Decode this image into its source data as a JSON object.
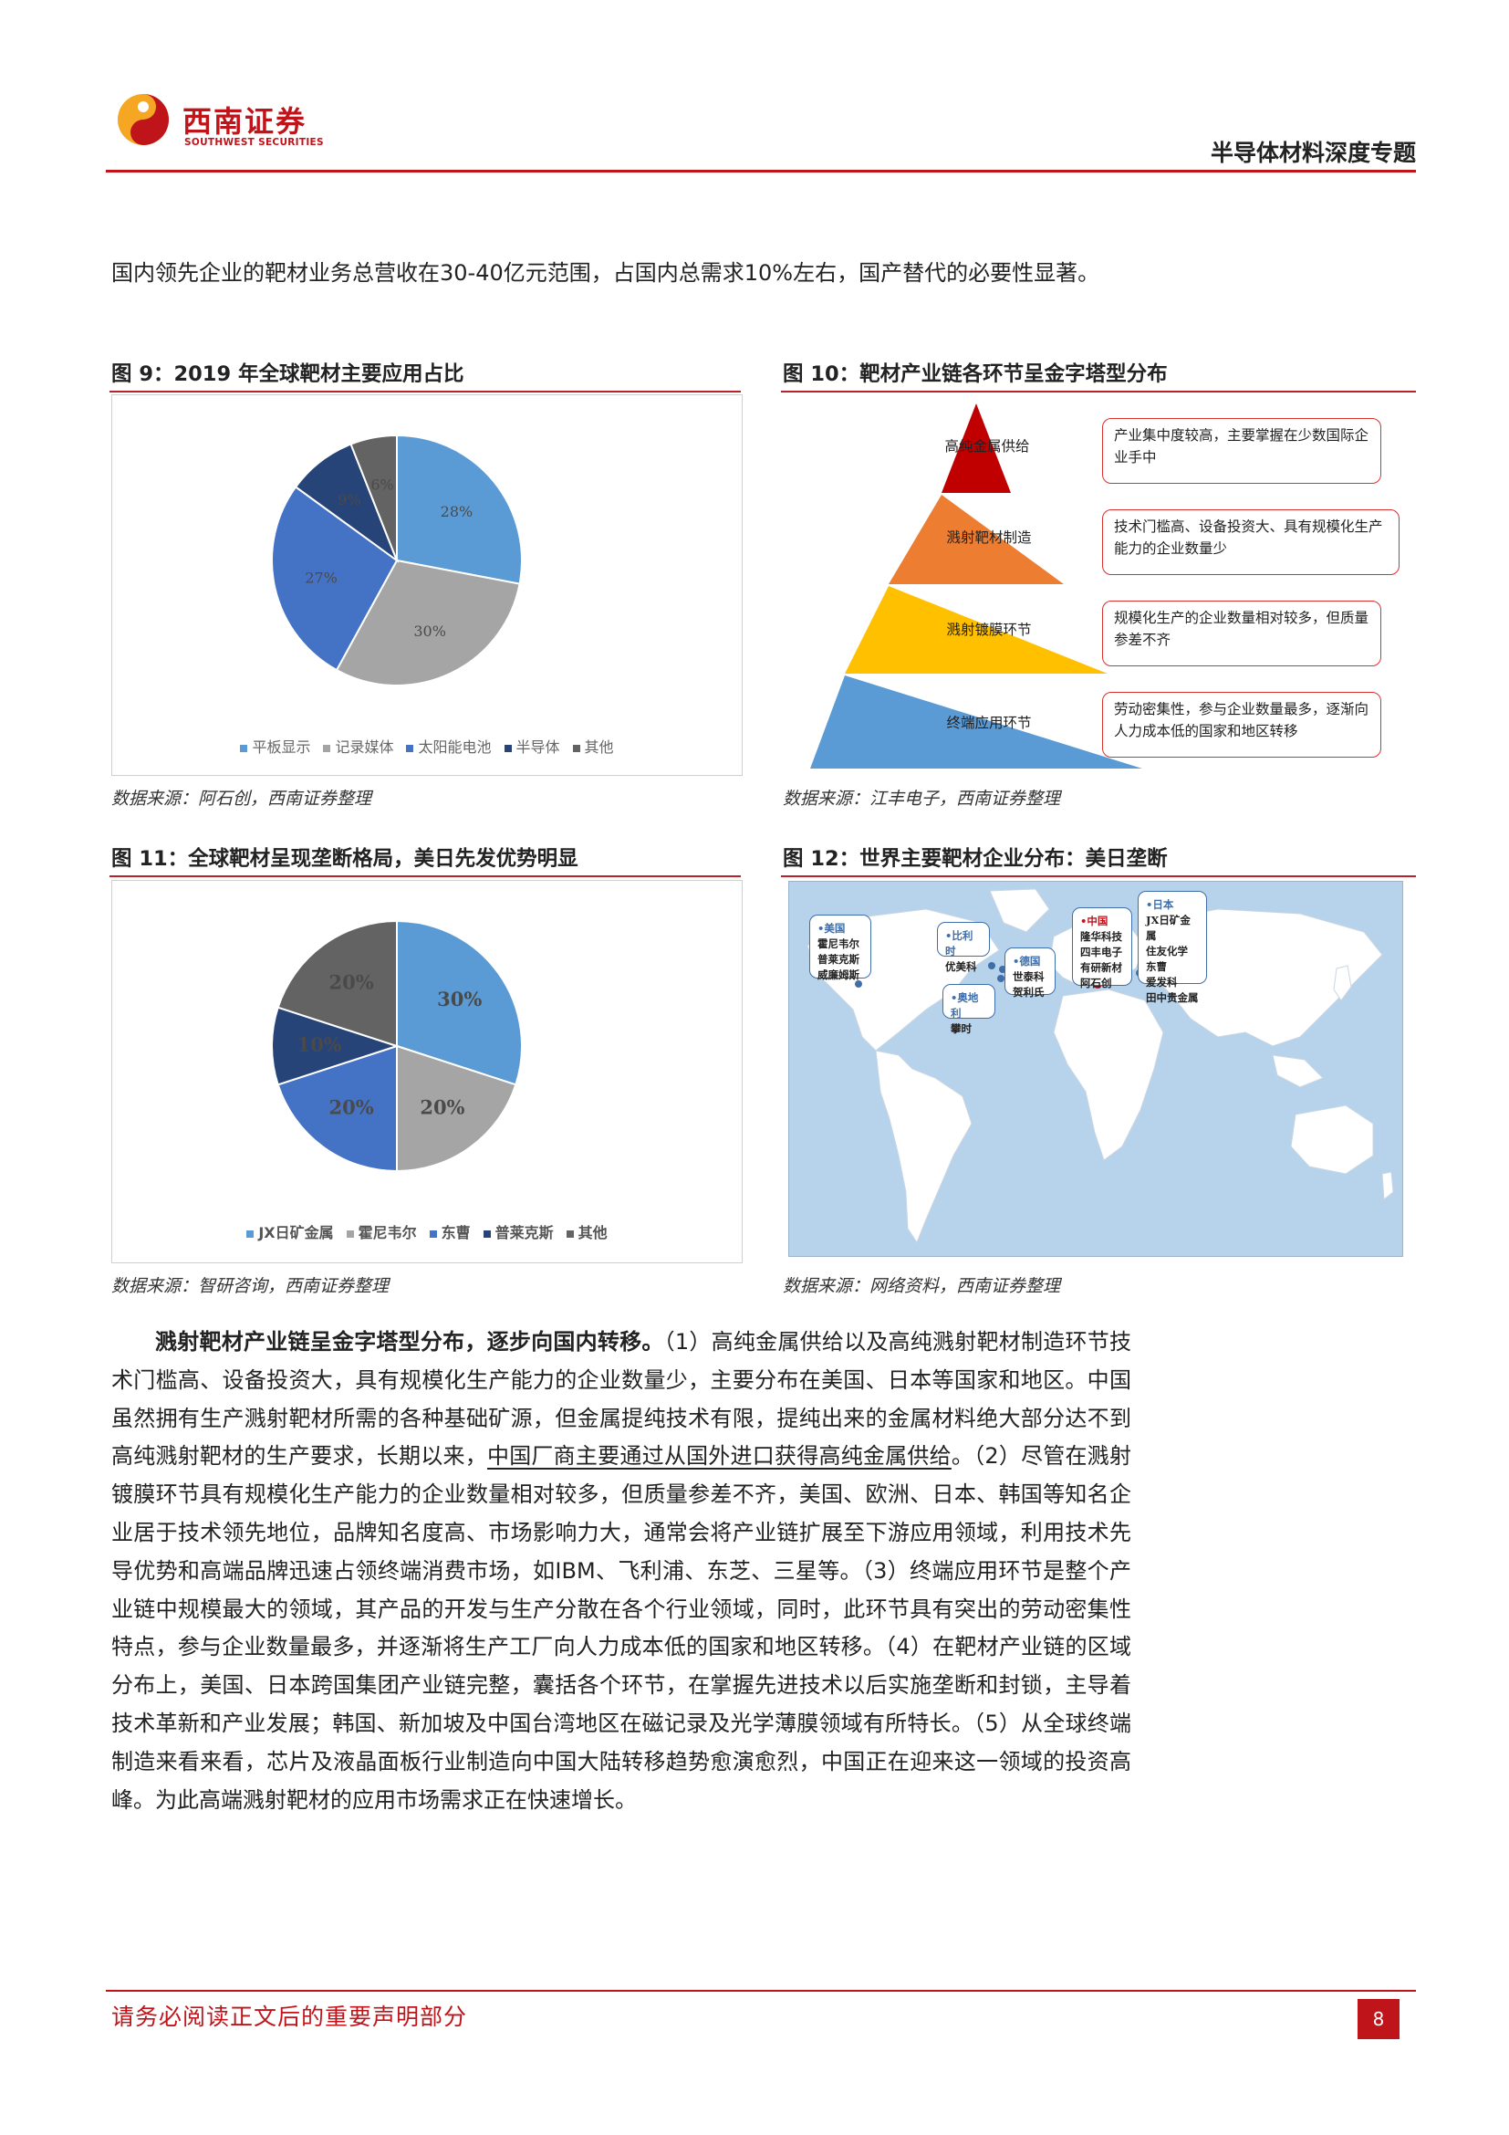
{
  "header": {
    "logo_cn": "西南证券",
    "logo_en": "SOUTHWEST SECURITIES",
    "title": "半导体材料深度专题",
    "brand_color": "#c0141b"
  },
  "intro": {
    "text": "国内领先企业的靶材业务总营收在30-40亿元范围，占国内总需求10%左右，国产替代的必要性显著。"
  },
  "fig9": {
    "title": "图 9：2019 年全球靶材主要应用占比",
    "source": "数据来源：阿石创，西南证券整理",
    "chart_data": {
      "type": "pie",
      "categories": [
        "平板显示",
        "记录媒体",
        "太阳能电池",
        "半导体",
        "其他"
      ],
      "values": [
        28,
        30,
        27,
        9,
        6
      ],
      "labels": [
        "28%",
        "30%",
        "27%",
        "9%",
        "6%"
      ],
      "colors": [
        "#5b9bd5",
        "#a5a5a5",
        "#4472c4",
        "#264478",
        "#636363"
      ]
    }
  },
  "fig10": {
    "title": "图 10：靶材产业链各环节呈金字塔型分布",
    "source": "数据来源：江丰电子，西南证券整理",
    "levels": [
      {
        "label": "高纯金属供给",
        "desc": "产业集中度较高，主要掌握在少数国际企业手中",
        "color": "#c00000"
      },
      {
        "label": "溅射靶材制造",
        "desc": "技术门槛高、设备投资大、具有规模化生产能力的企业数量少",
        "color": "#ed7d31"
      },
      {
        "label": "溅射镀膜环节",
        "desc": "规模化生产的企业数量相对较多，但质量参差不齐",
        "color": "#ffc000"
      },
      {
        "label": "终端应用环节",
        "desc": "劳动密集性，参与企业数量最多，逐渐向人力成本低的国家和地区转移",
        "color": "#5b9bd5"
      }
    ]
  },
  "fig11": {
    "title": "图 11：全球靶材呈现垄断格局，美日先发优势明显",
    "source": "数据来源：智研咨询，西南证券整理",
    "chart_data": {
      "type": "pie",
      "categories": [
        "JX日矿金属",
        "霍尼韦尔",
        "东曹",
        "普莱克斯",
        "其他"
      ],
      "values": [
        30,
        20,
        20,
        10,
        20
      ],
      "labels": [
        "30%",
        "20%",
        "20%",
        "10%",
        "20%"
      ],
      "colors": [
        "#5b9bd5",
        "#a5a5a5",
        "#4472c4",
        "#264478",
        "#636363"
      ]
    }
  },
  "fig12": {
    "title": "图 12：世界主要靶材企业分布：美日垄断",
    "source": "数据来源：网络资料，西南证券整理",
    "callouts": [
      {
        "title": "•美国",
        "lines": [
          "霍尼韦尔",
          "普莱克斯",
          "威廉姆斯"
        ]
      },
      {
        "title": "•比利时",
        "lines": [
          "优美科"
        ]
      },
      {
        "title": "•德国",
        "lines": [
          "世泰科",
          "贺利氏"
        ]
      },
      {
        "title": "•奥地利",
        "lines": [
          "攀时"
        ]
      },
      {
        "title": "•中国",
        "lines": [
          "隆华科技",
          "四丰电子",
          "有研新材",
          "阿石创"
        ]
      },
      {
        "title": "•日本",
        "lines": [
          "JX日矿金属",
          "住友化学",
          "东曹",
          "爱发科",
          "田中贵金属"
        ]
      }
    ]
  },
  "main": {
    "lead": "溅射靶材产业链呈金字塔型分布，逐步向国内转移。",
    "p1": "（1）高纯金属供给以及高纯溅射靶材制造环节技术门槛高、设备投资大，具有规模化生产能力的企业数量少，主要分布在美国、日本等国家和地区。中国虽然拥有生产溅射靶材所需的各种基础矿源，但金属提纯技术有限，提纯出来的金属材料绝大部分达不到高纯溅射靶材的生产要求，长期以来，",
    "underline": "中国厂商主要通过从国外进口获得高纯金属供给",
    "p2": "。（2）尽管在溅射镀膜环节具有规模化生产能力的企业数量相对较多，但质量参差不齐，美国、欧洲、日本、韩国等知名企业居于技术领先地位，品牌知名度高、市场影响力大，通常会将产业链扩展至下游应用领域，利用技术先导优势和高端品牌迅速占领终端消费市场，如IBM、飞利浦、东芝、三星等。（3）终端应用环节是整个产业链中规模最大的领域，其产品的开发与生产分散在各个行业领域，同时，此环节具有突出的劳动密集性特点，参与企业数量最多，并逐渐将生产工厂向人力成本低的国家和地区转移。（4）在靶材产业链的区域分布上，美国、日本跨国集团产业链完整，囊括各个环节，在掌握先进技术以后实施垄断和封锁，主导着技术革新和产业发展；韩国、新加坡及中国台湾地区在磁记录及光学薄膜领域有所特长。（5）从全球终端制造来看来看，芯片及液晶面板行业制造向中国大陆转移趋势愈演愈烈，中国正在迎来这一领域的投资高峰。为此高端溅射靶材的应用市场需求正在快速增长。"
  },
  "footer": {
    "text": "请务必阅读正文后的重要声明部分",
    "page": "8"
  }
}
